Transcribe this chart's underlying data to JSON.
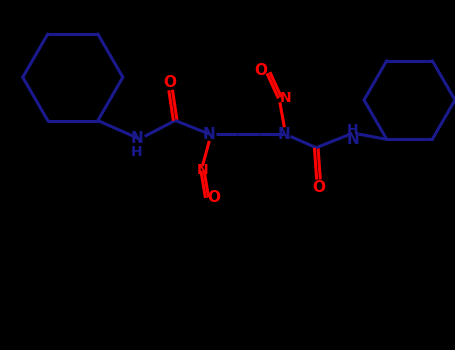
{
  "bg_color": "#000000",
  "bond_color": "#1a1a8e",
  "hetero_color": "#ff0000",
  "line_width": 2.2,
  "font_size": 11,
  "figsize": [
    4.55,
    3.5
  ],
  "dpi": 100,
  "xlim": [
    0,
    10
  ],
  "ylim": [
    0,
    7.7
  ]
}
